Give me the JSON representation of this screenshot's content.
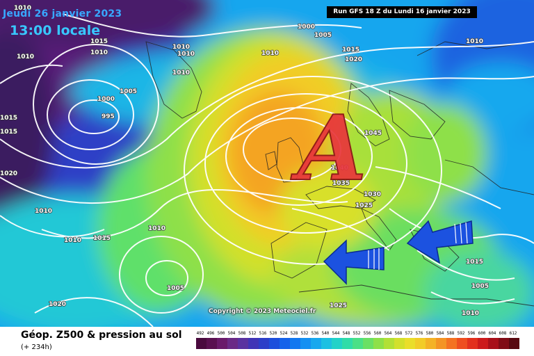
{
  "header": {
    "date": "Jeudi 26 janvier 2023",
    "local_time": "13:00 locale",
    "run_info": "Run GFS 18 Z du Lundi 16 janvier 2023"
  },
  "map": {
    "high_pressure_marker": "A",
    "copyright": "Copyright © 2023 Meteociel.fr",
    "arrow_color": "#1c52e0",
    "isobar_labels": [
      "1010",
      "1010",
      "1015",
      "1010",
      "1005",
      "1000",
      "995",
      "1015",
      "1015",
      "1020",
      "1010",
      "1010",
      "1010",
      "1015",
      "1010",
      "1005",
      "1020",
      "1010",
      "1000",
      "1005",
      "1010",
      "1015",
      "1020",
      "1045",
      "1040",
      "1035",
      "1030",
      "1025",
      "1025",
      "1010",
      "1015",
      "1005",
      "1010",
      "1010"
    ]
  },
  "legend": {
    "title": "Géop. Z500 & pression au sol",
    "forecast_step": "(+ 234h)",
    "scale_values": [
      "492",
      "496",
      "500",
      "504",
      "508",
      "512",
      "516",
      "520",
      "524",
      "528",
      "532",
      "536",
      "540",
      "544",
      "548",
      "552",
      "556",
      "560",
      "564",
      "568",
      "572",
      "576",
      "580",
      "584",
      "588",
      "592",
      "596",
      "600",
      "604",
      "608",
      "612"
    ],
    "scale_colors": [
      "#4a0a3e",
      "#5a1050",
      "#6a1a6a",
      "#6a2a86",
      "#5a32a0",
      "#4034b6",
      "#2c3ec8",
      "#1c4edc",
      "#1462ea",
      "#1278f0",
      "#1490f2",
      "#18a8ee",
      "#1cc0e2",
      "#22d2c8",
      "#30dca8",
      "#4ae086",
      "#6ae064",
      "#8ee048",
      "#b2e036",
      "#d2e02c",
      "#eade2a",
      "#f2cc28",
      "#f4b226",
      "#f49424",
      "#f47222",
      "#ee4e20",
      "#e2301e",
      "#cc1a1c",
      "#a8101a",
      "#800c16",
      "#580810"
    ]
  }
}
